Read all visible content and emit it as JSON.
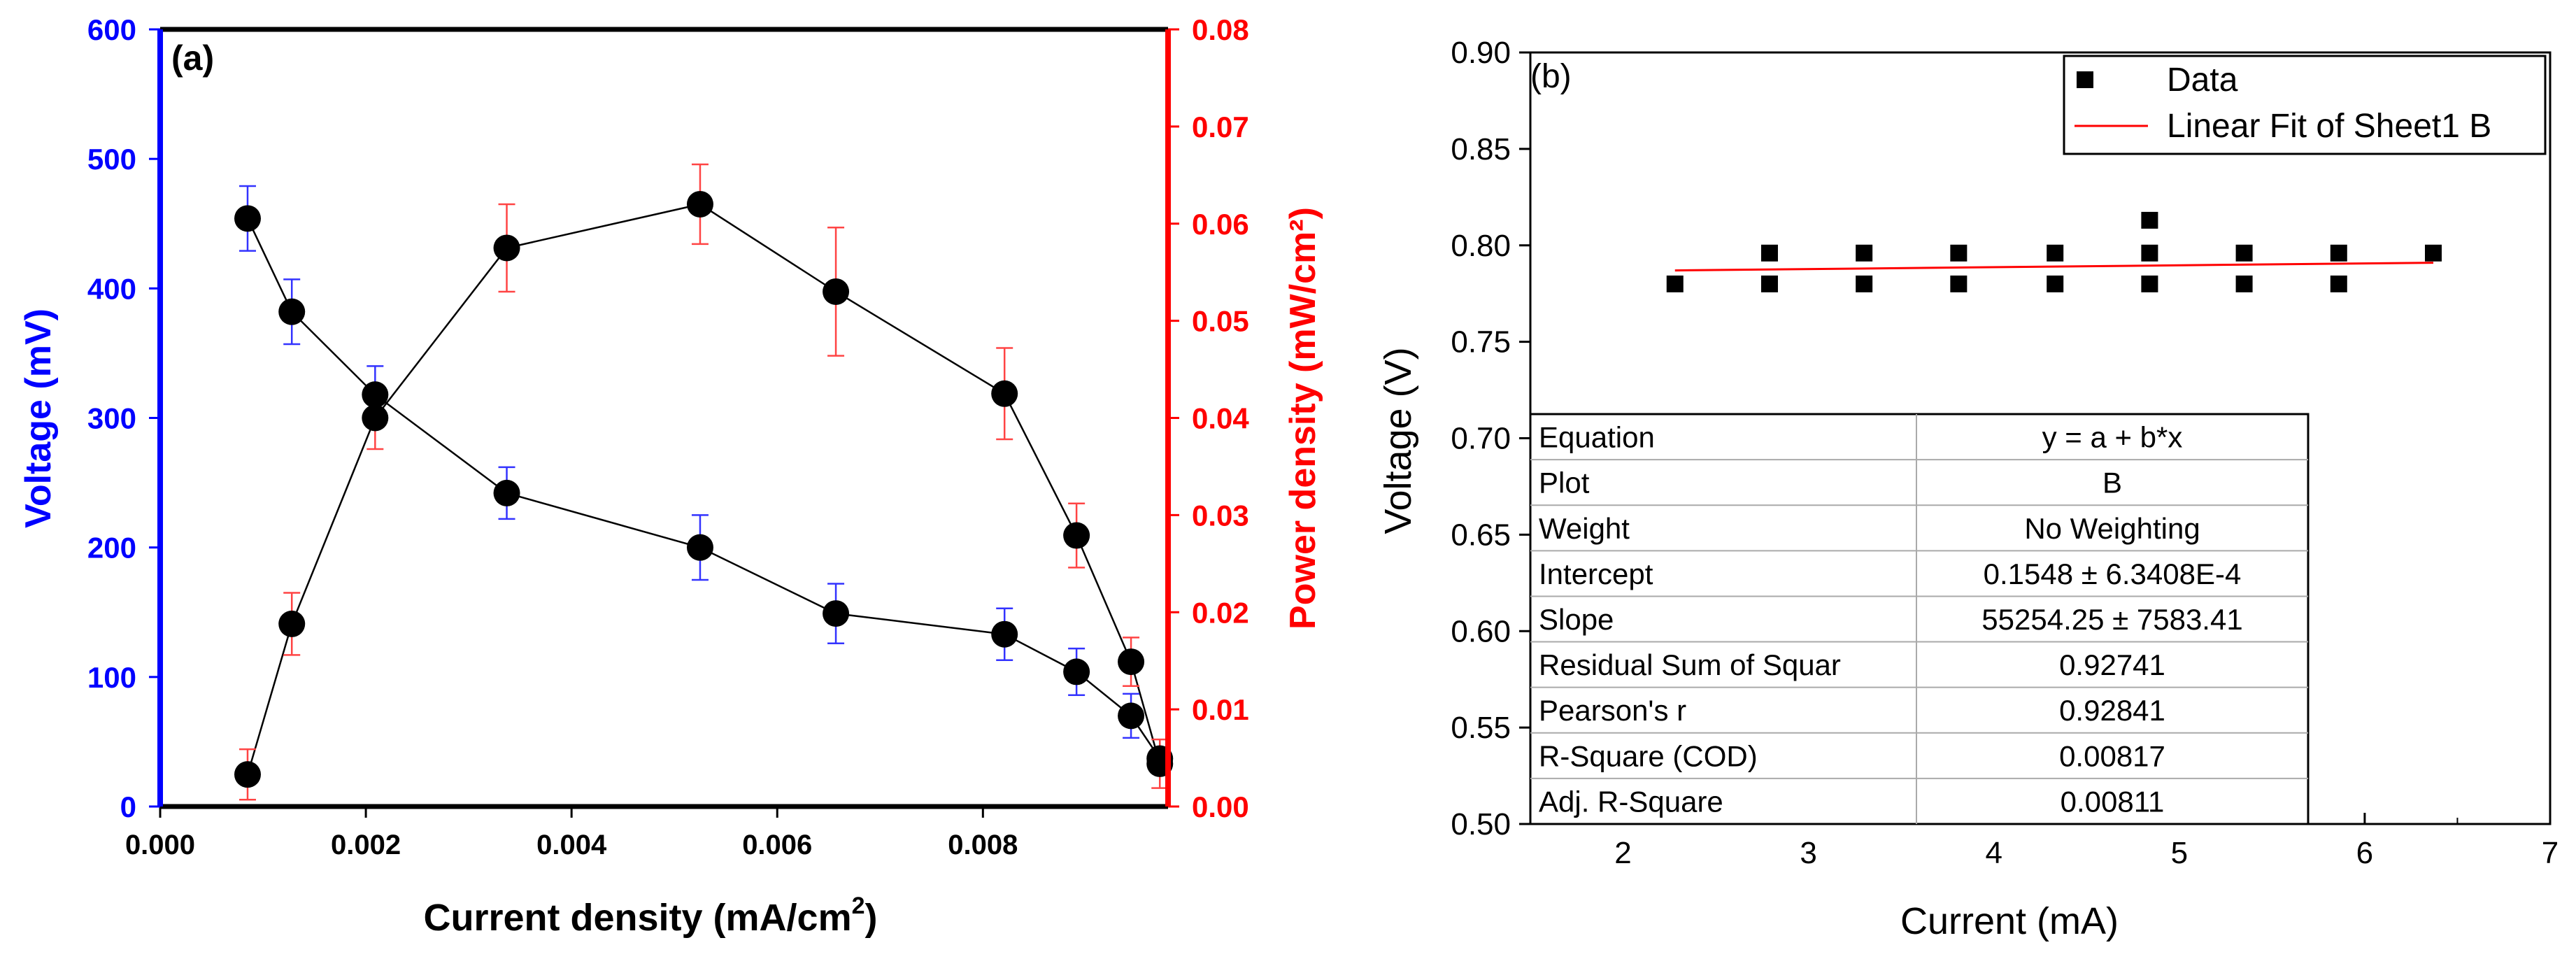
{
  "chart_data": [
    {
      "id": "a",
      "type": "line",
      "panel_label": "(a)",
      "xlabel_main": "Current density (mA/cm",
      "xlabel_sup": "2",
      "xlabel_close": ")",
      "ylabel_left": "Voltage (mV)",
      "ylabel_right": "Power density (mW/cm²)",
      "xlim": [
        0,
        0.0098
      ],
      "ylim_left": [
        0,
        600
      ],
      "ylim_right": [
        0,
        0.08
      ],
      "x_ticks": [
        "0.000",
        "0.002",
        "0.004",
        "0.006",
        "0.008"
      ],
      "y_left_ticks": [
        "0",
        "100",
        "200",
        "300",
        "400",
        "500",
        "600"
      ],
      "y_right_ticks": [
        "0.00",
        "0.01",
        "0.02",
        "0.03",
        "0.04",
        "0.05",
        "0.06",
        "0.07",
        "0.08"
      ],
      "colors": {
        "left_axis": "#0000ff",
        "right_axis": "#ff0000",
        "points": "#000000",
        "left_error": "#3333ff",
        "right_error": "#ff4444"
      },
      "series": [
        {
          "name": "Voltage",
          "axis": "left",
          "x": [
            0.00085,
            0.00128,
            0.00209,
            0.00337,
            0.00525,
            0.00657,
            0.00821,
            0.00891,
            0.00944,
            0.00972
          ],
          "y": [
            454,
            382,
            318,
            242,
            200,
            149,
            133,
            104,
            70,
            37
          ],
          "err": [
            25,
            25,
            22,
            20,
            25,
            23,
            20,
            18,
            17,
            0
          ]
        },
        {
          "name": "Power density",
          "axis": "right",
          "x": [
            0.00085,
            0.00128,
            0.00209,
            0.00337,
            0.00525,
            0.00657,
            0.00821,
            0.00891,
            0.00944,
            0.00972
          ],
          "y": [
            0.0033,
            0.0188,
            0.04,
            0.0575,
            0.062,
            0.053,
            0.0425,
            0.0279,
            0.0149,
            0.0044
          ],
          "err": [
            0.0026,
            0.0032,
            0.0032,
            0.0045,
            0.0041,
            0.0066,
            0.0047,
            0.0033,
            0.0025,
            0.0025
          ]
        }
      ]
    },
    {
      "id": "b",
      "type": "scatter",
      "panel_label": "(b)",
      "xlabel": "Current (mA)",
      "ylabel": "Voltage (V)",
      "xlim": [
        1.5,
        7
      ],
      "ylim": [
        0.5,
        0.9
      ],
      "x_ticks": [
        "2",
        "3",
        "4",
        "5",
        "6",
        "7"
      ],
      "y_ticks": [
        "0.50",
        "0.55",
        "0.60",
        "0.65",
        "0.70",
        "0.75",
        "0.80",
        "0.85",
        "0.90"
      ],
      "legend": {
        "data": "Data",
        "fit": "Linear Fit of Sheet1 B"
      },
      "colors": {
        "fit": "#ff0000",
        "points": "#000000"
      },
      "series": [
        {
          "name": "Data",
          "x": [
            2.28,
            2.79,
            2.79,
            3.3,
            3.3,
            3.81,
            3.81,
            4.33,
            4.33,
            4.84,
            4.84,
            4.84,
            5.35,
            5.35,
            5.86,
            5.86,
            6.37
          ],
          "y": [
            0.78,
            0.78,
            0.796,
            0.78,
            0.796,
            0.78,
            0.796,
            0.78,
            0.796,
            0.78,
            0.796,
            0.813,
            0.78,
            0.796,
            0.78,
            0.796,
            0.796
          ]
        }
      ],
      "fit_line": {
        "x": [
          2.28,
          6.37
        ],
        "y": [
          0.787,
          0.791
        ]
      },
      "fit_table": [
        {
          "label": "Equation",
          "value": "y = a + b*x"
        },
        {
          "label": "Plot",
          "value": "B"
        },
        {
          "label": "Weight",
          "value": "No Weighting"
        },
        {
          "label": "Intercept",
          "value": "0.1548 ± 6.3408E-4"
        },
        {
          "label": "Slope",
          "value": "55254.25 ± 7583.41"
        },
        {
          "label": "Residual Sum of Squar",
          "value": "0.92741"
        },
        {
          "label": "Pearson's r",
          "value": "0.92841"
        },
        {
          "label": "R-Square (COD)",
          "value": "0.00817"
        },
        {
          "label": "Adj. R-Square",
          "value": "0.00811"
        }
      ]
    }
  ]
}
